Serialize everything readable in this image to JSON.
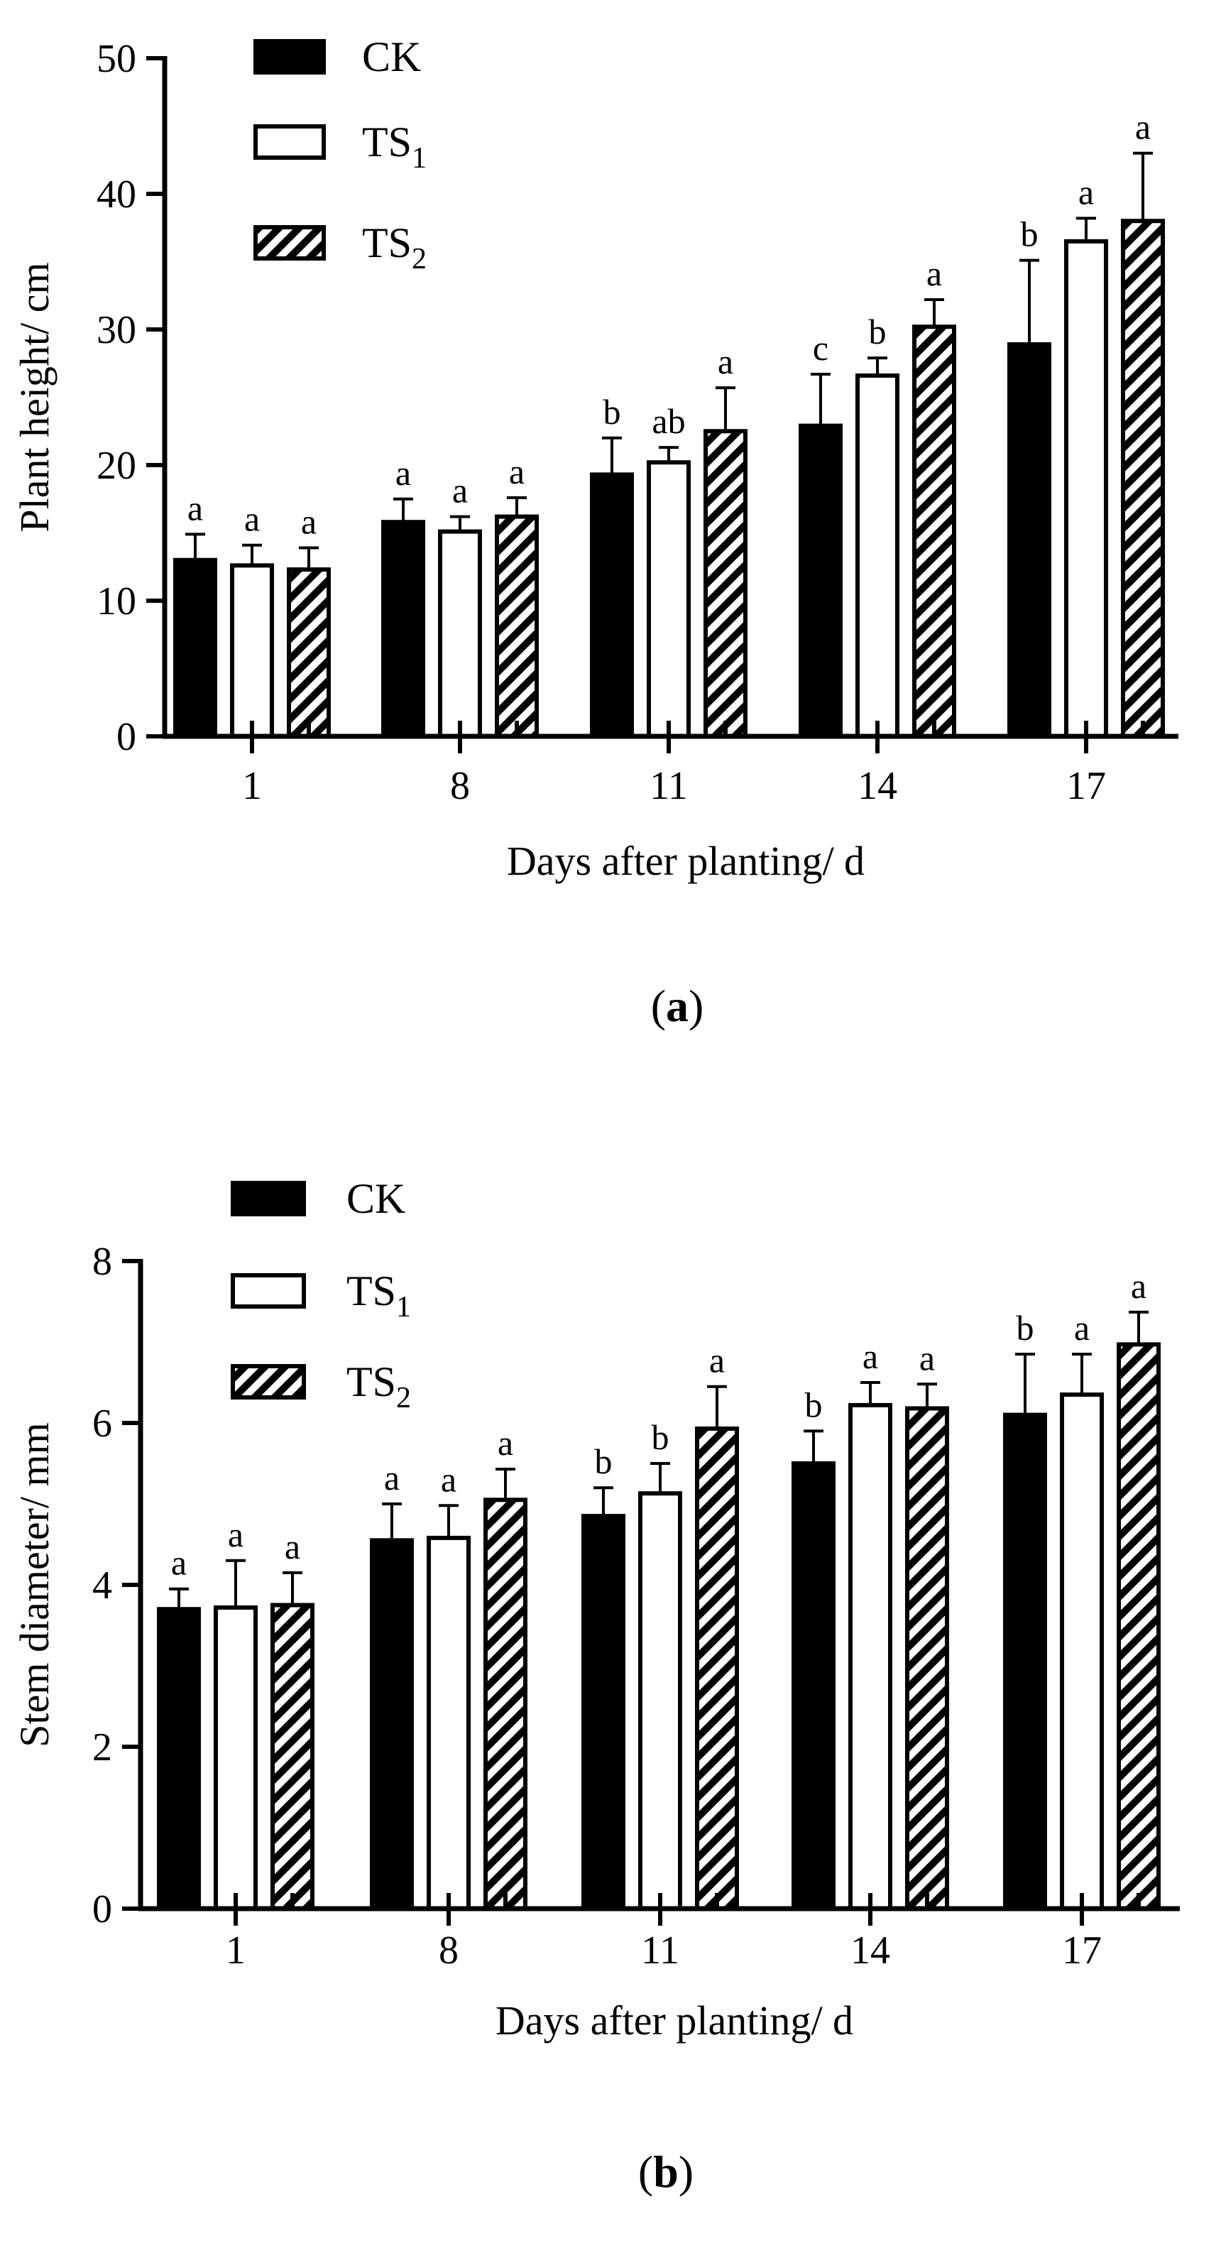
{
  "colors": {
    "ink": "#000000",
    "paper": "#ffffff"
  },
  "legend_items": [
    {
      "key": "CK",
      "base": "CK",
      "sub": "",
      "fill": "solid"
    },
    {
      "key": "TS1",
      "base": "TS",
      "sub": "1",
      "fill": "open"
    },
    {
      "key": "TS2",
      "base": "TS",
      "sub": "2",
      "fill": "hatched"
    }
  ],
  "chart_data": [
    {
      "type": "bar",
      "panel_label": "a",
      "xlabel": "Days after planting/ d",
      "ylabel": "Plant height/ cm",
      "categories": [
        "1",
        "8",
        "11",
        "14",
        "17"
      ],
      "ylim": [
        0,
        50
      ],
      "yticks": [
        0,
        10,
        20,
        30,
        40,
        50
      ],
      "legend_position": "top-left",
      "series": [
        {
          "name": "CK",
          "fill": "solid",
          "values": [
            13.0,
            15.8,
            19.3,
            22.9,
            28.9
          ],
          "errors": [
            1.9,
            1.7,
            2.7,
            3.8,
            6.2
          ],
          "letters": [
            "a",
            "a",
            "b",
            "c",
            "b"
          ]
        },
        {
          "name": "TS1",
          "fill": "open",
          "values": [
            12.6,
            15.1,
            20.2,
            26.6,
            36.5
          ],
          "errors": [
            1.5,
            1.1,
            1.1,
            1.3,
            1.7
          ],
          "letters": [
            "a",
            "a",
            "ab",
            "b",
            "a"
          ]
        },
        {
          "name": "TS2",
          "fill": "hatched",
          "values": [
            12.3,
            16.2,
            22.5,
            30.2,
            38.0
          ],
          "errors": [
            1.6,
            1.4,
            3.2,
            2.0,
            5.0
          ],
          "letters": [
            "a",
            "a",
            "a",
            "a",
            "a"
          ]
        }
      ]
    },
    {
      "type": "bar",
      "panel_label": "b",
      "xlabel": "Days after planting/ d",
      "ylabel": "Stem diameter/ mm",
      "categories": [
        "1",
        "8",
        "11",
        "14",
        "17"
      ],
      "ylim": [
        0,
        8
      ],
      "yticks": [
        0,
        2,
        4,
        6,
        8
      ],
      "legend_position": "top-left",
      "series": [
        {
          "name": "CK",
          "fill": "solid",
          "values": [
            3.7,
            4.55,
            4.85,
            5.5,
            6.1
          ],
          "errors": [
            0.25,
            0.45,
            0.35,
            0.4,
            0.75
          ],
          "letters": [
            "a",
            "a",
            "b",
            "b",
            "b"
          ]
        },
        {
          "name": "TS1",
          "fill": "open",
          "values": [
            3.72,
            4.58,
            5.13,
            6.22,
            6.35
          ],
          "errors": [
            0.58,
            0.4,
            0.37,
            0.28,
            0.5
          ],
          "letters": [
            "a",
            "a",
            "b",
            "a",
            "a"
          ]
        },
        {
          "name": "TS2",
          "fill": "hatched",
          "values": [
            3.75,
            5.05,
            5.93,
            6.18,
            6.97
          ],
          "errors": [
            0.4,
            0.38,
            0.52,
            0.3,
            0.4
          ],
          "letters": [
            "a",
            "a",
            "a",
            "a",
            "a"
          ]
        }
      ]
    }
  ]
}
